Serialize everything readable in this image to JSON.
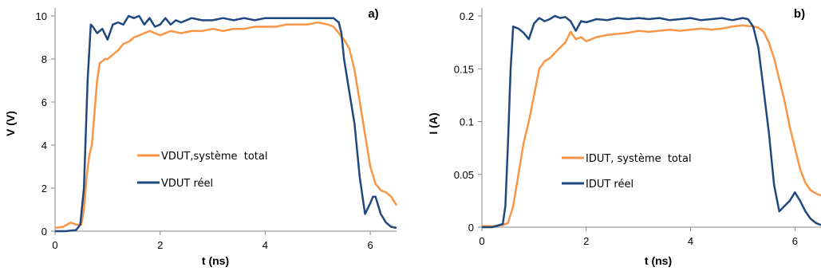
{
  "chart_data": [
    {
      "type": "line",
      "panel_label": "a)",
      "xlabel": "t (ns)",
      "ylabel": "V (V)",
      "xlim": [
        0,
        6.5
      ],
      "ylim": [
        0,
        10
      ],
      "xticks": [
        0,
        2,
        4,
        6
      ],
      "yticks": [
        0,
        2,
        4,
        6,
        8,
        10
      ],
      "ytick_labels": [
        "0",
        "2",
        "4",
        "6",
        "8",
        "10"
      ],
      "grid": false,
      "legend_position": "center",
      "series": [
        {
          "name": "VDUT,système  total",
          "color": "#f79646",
          "x": [
            0,
            0.15,
            0.3,
            0.4,
            0.5,
            0.55,
            0.6,
            0.65,
            0.7,
            0.75,
            0.8,
            0.85,
            0.9,
            0.95,
            1.0,
            1.1,
            1.2,
            1.3,
            1.4,
            1.5,
            1.6,
            1.7,
            1.8,
            1.9,
            2.0,
            2.2,
            2.4,
            2.6,
            2.8,
            3.0,
            3.2,
            3.4,
            3.6,
            3.8,
            4.0,
            4.2,
            4.4,
            4.6,
            4.8,
            5.0,
            5.2,
            5.3,
            5.4,
            5.5,
            5.6,
            5.7,
            5.8,
            5.9,
            6.0,
            6.1,
            6.2,
            6.3,
            6.4,
            6.5
          ],
          "y": [
            0.15,
            0.2,
            0.4,
            0.3,
            0.3,
            1.0,
            2.5,
            3.5,
            4.0,
            5.5,
            7.0,
            7.8,
            7.9,
            8.0,
            8.0,
            8.2,
            8.4,
            8.7,
            8.8,
            9.0,
            9.1,
            9.2,
            9.3,
            9.2,
            9.1,
            9.3,
            9.2,
            9.3,
            9.3,
            9.4,
            9.3,
            9.4,
            9.4,
            9.5,
            9.5,
            9.5,
            9.6,
            9.6,
            9.6,
            9.7,
            9.6,
            9.5,
            9.2,
            8.9,
            8.5,
            7.5,
            6.0,
            4.5,
            3.0,
            2.2,
            1.9,
            1.8,
            1.6,
            1.2
          ]
        },
        {
          "name": "VDUT réel",
          "color": "#1f497d",
          "x": [
            0,
            0.2,
            0.4,
            0.48,
            0.55,
            0.62,
            0.68,
            0.72,
            0.8,
            0.9,
            1.0,
            1.1,
            1.2,
            1.3,
            1.4,
            1.5,
            1.6,
            1.7,
            1.8,
            1.9,
            2.0,
            2.1,
            2.2,
            2.3,
            2.4,
            2.6,
            2.8,
            3.0,
            3.2,
            3.4,
            3.6,
            3.8,
            4.0,
            4.2,
            4.4,
            4.6,
            4.8,
            5.0,
            5.2,
            5.3,
            5.4,
            5.45,
            5.5,
            5.6,
            5.7,
            5.8,
            5.9,
            6.0,
            6.05,
            6.1,
            6.2,
            6.3,
            6.4,
            6.5
          ],
          "y": [
            0,
            0,
            0.05,
            0.3,
            2.0,
            7.0,
            9.6,
            9.5,
            9.2,
            9.4,
            8.9,
            9.6,
            9.7,
            9.6,
            10.0,
            9.9,
            10.0,
            9.6,
            9.9,
            9.5,
            9.6,
            9.9,
            9.6,
            9.8,
            9.7,
            9.9,
            9.8,
            9.8,
            9.9,
            9.8,
            9.9,
            9.8,
            9.9,
            9.9,
            9.9,
            9.9,
            9.9,
            9.9,
            9.9,
            9.9,
            9.7,
            9.2,
            8.0,
            6.5,
            5.0,
            2.5,
            0.8,
            1.3,
            1.6,
            1.6,
            0.8,
            0.4,
            0.2,
            0.15
          ]
        }
      ]
    },
    {
      "type": "line",
      "panel_label": "b)",
      "xlabel": "t (ns)",
      "ylabel": "I (A)",
      "xlim": [
        0,
        6.5
      ],
      "ylim": [
        0,
        0.2
      ],
      "xticks": [
        0,
        2,
        4,
        6
      ],
      "yticks": [
        0,
        0.05,
        0.1,
        0.15,
        0.2
      ],
      "ytick_labels": [
        "0",
        "0.05",
        "0.1",
        "0.15",
        "0.2"
      ],
      "grid": false,
      "legend_position": "center",
      "series": [
        {
          "name": "IDUT, système  total",
          "color": "#f79646",
          "x": [
            0,
            0.2,
            0.4,
            0.5,
            0.6,
            0.7,
            0.8,
            0.9,
            1.0,
            1.1,
            1.2,
            1.3,
            1.4,
            1.5,
            1.6,
            1.7,
            1.8,
            1.9,
            2.0,
            2.2,
            2.4,
            2.6,
            2.8,
            3.0,
            3.2,
            3.4,
            3.6,
            3.8,
            4.0,
            4.2,
            4.4,
            4.6,
            4.8,
            5.0,
            5.2,
            5.3,
            5.4,
            5.5,
            5.6,
            5.7,
            5.8,
            5.9,
            6.0,
            6.1,
            6.2,
            6.3,
            6.4,
            6.5
          ],
          "y": [
            0.001,
            0.001,
            0.002,
            0.004,
            0.02,
            0.05,
            0.08,
            0.1,
            0.125,
            0.15,
            0.157,
            0.16,
            0.165,
            0.17,
            0.175,
            0.185,
            0.178,
            0.18,
            0.176,
            0.18,
            0.182,
            0.183,
            0.184,
            0.186,
            0.185,
            0.186,
            0.187,
            0.186,
            0.187,
            0.188,
            0.187,
            0.188,
            0.19,
            0.191,
            0.19,
            0.189,
            0.185,
            0.175,
            0.16,
            0.14,
            0.12,
            0.095,
            0.075,
            0.055,
            0.042,
            0.035,
            0.032,
            0.03
          ]
        },
        {
          "name": "IDUT réel",
          "color": "#1f497d",
          "x": [
            0,
            0.2,
            0.4,
            0.45,
            0.5,
            0.55,
            0.6,
            0.7,
            0.8,
            0.9,
            1.0,
            1.1,
            1.2,
            1.3,
            1.4,
            1.5,
            1.6,
            1.7,
            1.8,
            1.9,
            2.0,
            2.2,
            2.4,
            2.6,
            2.8,
            3.0,
            3.2,
            3.4,
            3.6,
            3.8,
            4.0,
            4.2,
            4.4,
            4.6,
            4.8,
            5.0,
            5.1,
            5.2,
            5.3,
            5.4,
            5.5,
            5.6,
            5.7,
            5.8,
            5.9,
            6.0,
            6.1,
            6.2,
            6.3,
            6.4,
            6.5
          ],
          "y": [
            0,
            0,
            0.003,
            0.02,
            0.08,
            0.15,
            0.19,
            0.188,
            0.184,
            0.178,
            0.193,
            0.198,
            0.195,
            0.197,
            0.2,
            0.198,
            0.199,
            0.195,
            0.186,
            0.195,
            0.194,
            0.197,
            0.196,
            0.198,
            0.197,
            0.198,
            0.197,
            0.198,
            0.196,
            0.197,
            0.198,
            0.196,
            0.197,
            0.198,
            0.196,
            0.198,
            0.197,
            0.19,
            0.17,
            0.13,
            0.09,
            0.04,
            0.015,
            0.02,
            0.025,
            0.033,
            0.025,
            0.015,
            0.008,
            0.004,
            0.002
          ]
        }
      ]
    }
  ]
}
